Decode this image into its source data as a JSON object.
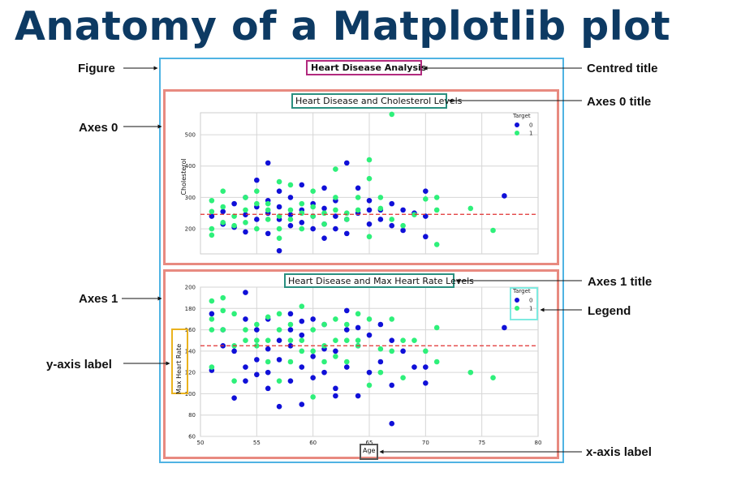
{
  "heading": "Anatomy of a Matplotlib plot",
  "figure": {
    "suptitle": "Heart Disease Analysis"
  },
  "annotations": {
    "figure": "Figure",
    "axes0": "Axes 0",
    "axes1": "Axes 1",
    "y_axis_label": "y-axis label",
    "centred_title": "Centred title",
    "axes0_title": "Axes 0 title",
    "axes1_title": "Axes 1 title",
    "legend": "Legend",
    "x_axis_label": "x-axis label"
  },
  "colors": {
    "heading": "#0d3a63",
    "figure_box": "#4fb3e3",
    "axes_box": "#e88a80",
    "title_box": "#b12a7e",
    "axes_title_box": "#2a8f80",
    "legend_box": "#7eeae0",
    "ylabel_box": "#eab21e",
    "xlabel_box": "#555555",
    "target0": "#1010d8",
    "target1": "#2ef07a",
    "mean_line": "#e03030"
  },
  "chart_data": [
    {
      "type": "scatter",
      "title": "Heart Disease and Cholesterol Levels",
      "xlabel": "",
      "ylabel": "Cholesterol",
      "xlim": [
        50,
        80
      ],
      "ylim": [
        120,
        570
      ],
      "yticks": [
        200,
        300,
        400,
        500
      ],
      "xgrid": [
        55,
        60,
        65,
        70,
        75
      ],
      "grid": true,
      "legend": {
        "title": "Target",
        "entries": [
          "0",
          "1"
        ],
        "placement": "top-right"
      },
      "mean_line": 246,
      "series": [
        {
          "name": "0",
          "points": [
            [
              51,
              240
            ],
            [
              52,
              215
            ],
            [
              52,
              255
            ],
            [
              53,
              205
            ],
            [
              53,
              280
            ],
            [
              54,
              190
            ],
            [
              54,
              245
            ],
            [
              54,
              300
            ],
            [
              55,
              230
            ],
            [
              55,
              270
            ],
            [
              55,
              355
            ],
            [
              56,
              185
            ],
            [
              56,
              250
            ],
            [
              56,
              410
            ],
            [
              56,
              290
            ],
            [
              57,
              230
            ],
            [
              57,
              270
            ],
            [
              57,
              320
            ],
            [
              57,
              130
            ],
            [
              58,
              210
            ],
            [
              58,
              245
            ],
            [
              58,
              300
            ],
            [
              59,
              220
            ],
            [
              59,
              260
            ],
            [
              59,
              340
            ],
            [
              60,
              200
            ],
            [
              60,
              240
            ],
            [
              60,
              280
            ],
            [
              61,
              170
            ],
            [
              61,
              215
            ],
            [
              61,
              265
            ],
            [
              61,
              330
            ],
            [
              62,
              200
            ],
            [
              62,
              240
            ],
            [
              62,
              290
            ],
            [
              63,
              185
            ],
            [
              63,
              230
            ],
            [
              63,
              410
            ],
            [
              64,
              250
            ],
            [
              64,
              330
            ],
            [
              65,
              215
            ],
            [
              65,
              260
            ],
            [
              65,
              290
            ],
            [
              66,
              230
            ],
            [
              66,
              260
            ],
            [
              67,
              280
            ],
            [
              67,
              210
            ],
            [
              68,
              260
            ],
            [
              68,
              195
            ],
            [
              69,
              250
            ],
            [
              70,
              240
            ],
            [
              70,
              320
            ],
            [
              70,
              175
            ],
            [
              77,
              305
            ]
          ]
        },
        {
          "name": "1",
          "points": [
            [
              51,
              200
            ],
            [
              51,
              180
            ],
            [
              51,
              255
            ],
            [
              51,
              290
            ],
            [
              52,
              220
            ],
            [
              52,
              320
            ],
            [
              52,
              270
            ],
            [
              53,
              240
            ],
            [
              53,
              210
            ],
            [
              54,
              260
            ],
            [
              54,
              300
            ],
            [
              54,
              220
            ],
            [
              55,
              280
            ],
            [
              55,
              320
            ],
            [
              55,
              200
            ],
            [
              56,
              230
            ],
            [
              56,
              260
            ],
            [
              56,
              280
            ],
            [
              57,
              240
            ],
            [
              57,
              350
            ],
            [
              57,
              200
            ],
            [
              57,
              170
            ],
            [
              58,
              260
            ],
            [
              58,
              230
            ],
            [
              58,
              340
            ],
            [
              59,
              250
            ],
            [
              59,
              280
            ],
            [
              59,
              200
            ],
            [
              60,
              320
            ],
            [
              60,
              240
            ],
            [
              60,
              270
            ],
            [
              61,
              250
            ],
            [
              61,
              215
            ],
            [
              62,
              390
            ],
            [
              62,
              300
            ],
            [
              62,
              260
            ],
            [
              63,
              250
            ],
            [
              63,
              230
            ],
            [
              64,
              260
            ],
            [
              64,
              300
            ],
            [
              65,
              420
            ],
            [
              65,
              360
            ],
            [
              65,
              175
            ],
            [
              66,
              300
            ],
            [
              66,
              265
            ],
            [
              67,
              565
            ],
            [
              67,
              230
            ],
            [
              68,
              210
            ],
            [
              69,
              245
            ],
            [
              70,
              295
            ],
            [
              71,
              300
            ],
            [
              71,
              150
            ],
            [
              71,
              260
            ],
            [
              74,
              265
            ],
            [
              76,
              195
            ]
          ]
        }
      ]
    },
    {
      "type": "scatter",
      "title": "Heart Disease and Max Heart Rate Levels",
      "xlabel": "Age",
      "ylabel": "Max Heart Rate",
      "xlim": [
        50,
        80
      ],
      "ylim": [
        60,
        200
      ],
      "xticks": [
        50,
        55,
        60,
        65,
        70,
        75,
        80
      ],
      "yticks": [
        60,
        80,
        100,
        120,
        140,
        160,
        180,
        200
      ],
      "grid": true,
      "legend": {
        "title": "Target",
        "entries": [
          "0",
          "1"
        ],
        "placement": "top-right"
      },
      "mean_line": 145,
      "series": [
        {
          "name": "0",
          "points": [
            [
              51,
              122
            ],
            [
              51,
              175
            ],
            [
              52,
              145
            ],
            [
              52,
              160
            ],
            [
              53,
              96
            ],
            [
              53,
              140
            ],
            [
              54,
              112
            ],
            [
              54,
              125
            ],
            [
              54,
              195
            ],
            [
              54,
              170
            ],
            [
              55,
              132
            ],
            [
              55,
              160
            ],
            [
              55,
              118
            ],
            [
              56,
              142
            ],
            [
              56,
              105
            ],
            [
              56,
              120
            ],
            [
              56,
              170
            ],
            [
              57,
              88
            ],
            [
              57,
              132
            ],
            [
              57,
              150
            ],
            [
              58,
              112
            ],
            [
              58,
              145
            ],
            [
              58,
              175
            ],
            [
              58,
              160
            ],
            [
              59,
              90
            ],
            [
              59,
              125
            ],
            [
              59,
              155
            ],
            [
              59,
              168
            ],
            [
              60,
              115
            ],
            [
              60,
              135
            ],
            [
              60,
              170
            ],
            [
              61,
              120
            ],
            [
              61,
              142
            ],
            [
              61,
              165
            ],
            [
              62,
              98
            ],
            [
              62,
              105
            ],
            [
              62,
              140
            ],
            [
              63,
              160
            ],
            [
              63,
              178
            ],
            [
              63,
              125
            ],
            [
              64,
              98
            ],
            [
              64,
              145
            ],
            [
              64,
              162
            ],
            [
              65,
              120
            ],
            [
              65,
              155
            ],
            [
              66,
              130
            ],
            [
              66,
              165
            ],
            [
              67,
              72
            ],
            [
              67,
              150
            ],
            [
              67,
              108
            ],
            [
              68,
              140
            ],
            [
              69,
              125
            ],
            [
              70,
              125
            ],
            [
              70,
              110
            ],
            [
              77,
              162
            ]
          ]
        },
        {
          "name": "1",
          "points": [
            [
              51,
              125
            ],
            [
              51,
              160
            ],
            [
              51,
              187
            ],
            [
              51,
              170
            ],
            [
              52,
              160
            ],
            [
              52,
              178
            ],
            [
              52,
              190
            ],
            [
              53,
              145
            ],
            [
              53,
              175
            ],
            [
              53,
              112
            ],
            [
              54,
              150
            ],
            [
              54,
              160
            ],
            [
              55,
              165
            ],
            [
              55,
              150
            ],
            [
              55,
              145
            ],
            [
              56,
              172
            ],
            [
              56,
              150
            ],
            [
              56,
              130
            ],
            [
              57,
              160
            ],
            [
              57,
              175
            ],
            [
              57,
              112
            ],
            [
              58,
              165
            ],
            [
              58,
              150
            ],
            [
              58,
              130
            ],
            [
              59,
              140
            ],
            [
              59,
              182
            ],
            [
              59,
              150
            ],
            [
              60,
              160
            ],
            [
              60,
              140
            ],
            [
              60,
              97
            ],
            [
              61,
              145
            ],
            [
              61,
              130
            ],
            [
              61,
              165
            ],
            [
              62,
              150
            ],
            [
              62,
              170
            ],
            [
              62,
              135
            ],
            [
              63,
              165
            ],
            [
              63,
              130
            ],
            [
              63,
              150
            ],
            [
              64,
              175
            ],
            [
              64,
              145
            ],
            [
              64,
              150
            ],
            [
              65,
              170
            ],
            [
              65,
              108
            ],
            [
              66,
              142
            ],
            [
              66,
              120
            ],
            [
              67,
              170
            ],
            [
              67,
              140
            ],
            [
              68,
              150
            ],
            [
              68,
              115
            ],
            [
              69,
              150
            ],
            [
              70,
              140
            ],
            [
              71,
              162
            ],
            [
              71,
              130
            ],
            [
              74,
              120
            ],
            [
              76,
              115
            ]
          ]
        }
      ]
    }
  ]
}
